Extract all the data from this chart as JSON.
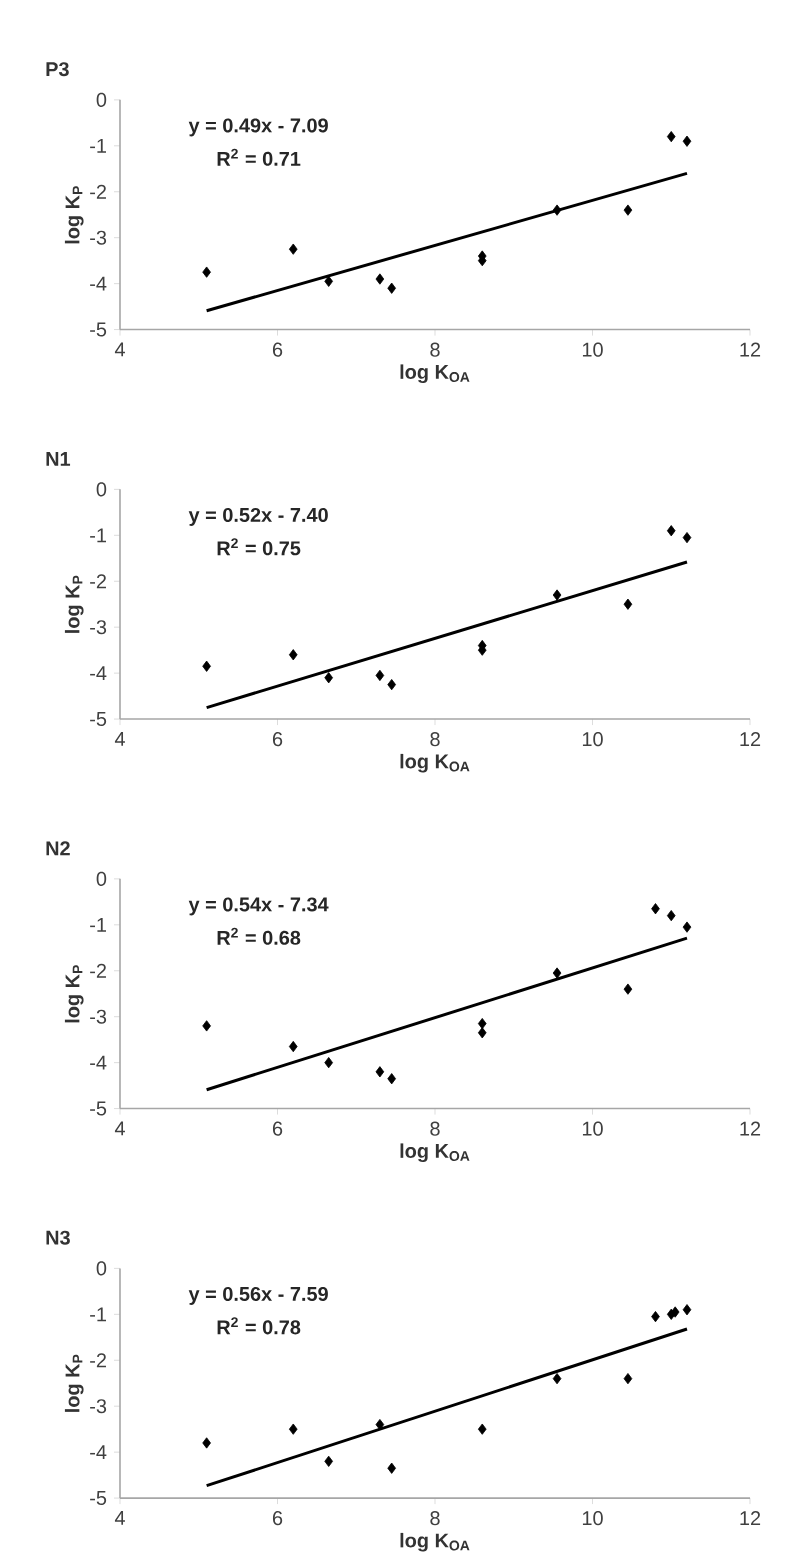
{
  "chart_data": [
    {
      "type": "scatter",
      "title": "P3",
      "xlabel": "log K$_{OA}$",
      "ylabel": "log K$_{P}$",
      "xlim": [
        4,
        12
      ],
      "ylim": [
        -5,
        0
      ],
      "xticks": [
        4,
        6,
        8,
        10,
        12
      ],
      "yticks": [
        -5,
        -4,
        -3,
        -2,
        -1,
        0
      ],
      "annotations": [
        "y = 0.49x - 7.09",
        "R$^{2}$ = 0.71"
      ],
      "series": [
        {
          "marker": "diamond",
          "color": "#000000",
          "x": [
            5.1,
            6.2,
            6.65,
            7.3,
            7.45,
            8.6,
            8.6,
            9.55,
            10.45,
            11.0,
            11.2
          ],
          "values": [
            -3.75,
            -3.25,
            -3.95,
            -3.9,
            -4.1,
            -3.4,
            -3.5,
            -2.4,
            -2.4,
            -0.8,
            -0.9
          ]
        },
        {
          "type": "line",
          "color": "#000000",
          "x": [
            5.1,
            11.2
          ],
          "values": [
            -4.59,
            -1.6
          ]
        }
      ]
    },
    {
      "type": "scatter",
      "title": "N1",
      "xlabel": "log K$_{OA}$",
      "ylabel": "log K$_{P}$",
      "xlim": [
        4,
        12
      ],
      "ylim": [
        -5,
        0
      ],
      "xticks": [
        4,
        6,
        8,
        10,
        12
      ],
      "yticks": [
        -5,
        -4,
        -3,
        -2,
        -1,
        0
      ],
      "annotations": [
        "y = 0.52x - 7.40",
        "R$^{2}$ = 0.75"
      ],
      "series": [
        {
          "marker": "diamond",
          "color": "#000000",
          "x": [
            5.1,
            6.2,
            6.65,
            7.3,
            7.45,
            8.6,
            8.6,
            9.55,
            10.45,
            11.0,
            11.2
          ],
          "values": [
            -3.85,
            -3.6,
            -4.1,
            -4.05,
            -4.25,
            -3.4,
            -3.5,
            -2.3,
            -2.5,
            -0.9,
            -1.05
          ]
        },
        {
          "type": "line",
          "color": "#000000",
          "x": [
            5.1,
            11.2
          ],
          "values": [
            -4.75,
            -1.58
          ]
        }
      ]
    },
    {
      "type": "scatter",
      "title": "N2",
      "xlabel": "log K$_{OA}$",
      "ylabel": "log K$_{P}$",
      "xlim": [
        4,
        12
      ],
      "ylim": [
        -5,
        0
      ],
      "xticks": [
        4,
        6,
        8,
        10,
        12
      ],
      "yticks": [
        -5,
        -4,
        -3,
        -2,
        -1,
        0
      ],
      "annotations": [
        "y = 0.54x - 7.34",
        "R$^{2}$ = 0.68"
      ],
      "series": [
        {
          "marker": "diamond",
          "color": "#000000",
          "x": [
            5.1,
            6.2,
            6.65,
            7.3,
            7.45,
            8.6,
            8.6,
            9.55,
            10.45,
            10.8,
            11.0,
            11.2
          ],
          "values": [
            -3.2,
            -3.65,
            -4.0,
            -4.2,
            -4.35,
            -3.15,
            -3.35,
            -2.05,
            -2.4,
            -0.65,
            -0.8,
            -1.05
          ]
        },
        {
          "type": "line",
          "color": "#000000",
          "x": [
            5.1,
            11.2
          ],
          "values": [
            -4.59,
            -1.29
          ]
        }
      ]
    },
    {
      "type": "scatter",
      "title": "N3",
      "xlabel": "log K$_{OA}$",
      "ylabel": "log K$_{P}$",
      "xlim": [
        4,
        12
      ],
      "ylim": [
        -5,
        0
      ],
      "xticks": [
        4,
        6,
        8,
        10,
        12
      ],
      "yticks": [
        -5,
        -4,
        -3,
        -2,
        -1,
        0
      ],
      "annotations": [
        "y = 0.56x - 7.59",
        "R$^{2}$ = 0.78"
      ],
      "series": [
        {
          "marker": "diamond",
          "color": "#000000",
          "x": [
            5.1,
            6.2,
            6.65,
            7.3,
            7.45,
            8.6,
            9.55,
            10.45,
            10.8,
            11.0,
            11.05,
            11.2
          ],
          "values": [
            -3.8,
            -3.5,
            -4.2,
            -3.4,
            -4.35,
            -3.5,
            -2.4,
            -2.4,
            -1.05,
            -1.0,
            -0.95,
            -0.9
          ]
        },
        {
          "type": "line",
          "color": "#000000",
          "x": [
            5.1,
            11.2
          ],
          "values": [
            -4.73,
            -1.32
          ]
        }
      ]
    }
  ]
}
